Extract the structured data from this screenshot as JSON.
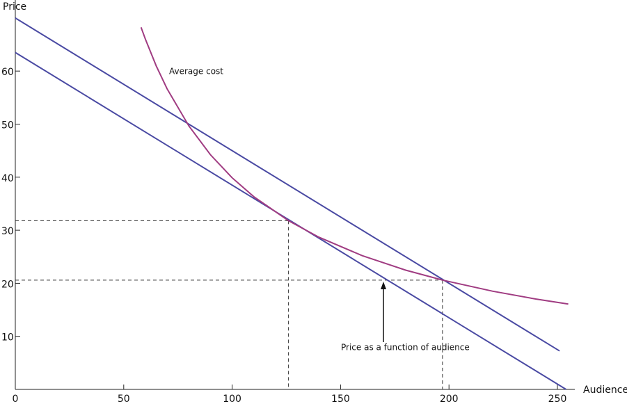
{
  "chart_data": {
    "type": "line",
    "x_label": "Audience",
    "y_label": "Price",
    "xlim": [
      0,
      258
    ],
    "ylim": [
      0,
      73
    ],
    "xticks": [
      0,
      50,
      100,
      150,
      200,
      250
    ],
    "yticks": [
      10,
      20,
      30,
      40,
      50,
      60
    ],
    "series": [
      {
        "color": "#4a4aa3",
        "x": [
          0,
          251
        ],
        "values": [
          70,
          7.25
        ]
      },
      {
        "name": "Price as a function of audience",
        "color": "#4a4aa3",
        "x": [
          0,
          254
        ],
        "values": [
          63.5,
          0
        ]
      },
      {
        "name": "Average cost",
        "color": "#a03c82",
        "x": [
          58,
          60,
          65,
          70,
          80,
          90,
          100,
          110,
          126,
          140,
          160,
          180,
          197,
          220,
          240,
          255
        ],
        "values": [
          68.24,
          65.99,
          60.97,
          56.66,
          49.67,
          44.23,
          39.88,
          36.32,
          31.8,
          28.69,
          25.2,
          22.48,
          20.6,
          18.52,
          17.04,
          16.08
        ]
      }
    ],
    "guides": [
      {
        "x": 126,
        "y": 31.8
      },
      {
        "x": 197,
        "y": 20.6
      }
    ]
  }
}
